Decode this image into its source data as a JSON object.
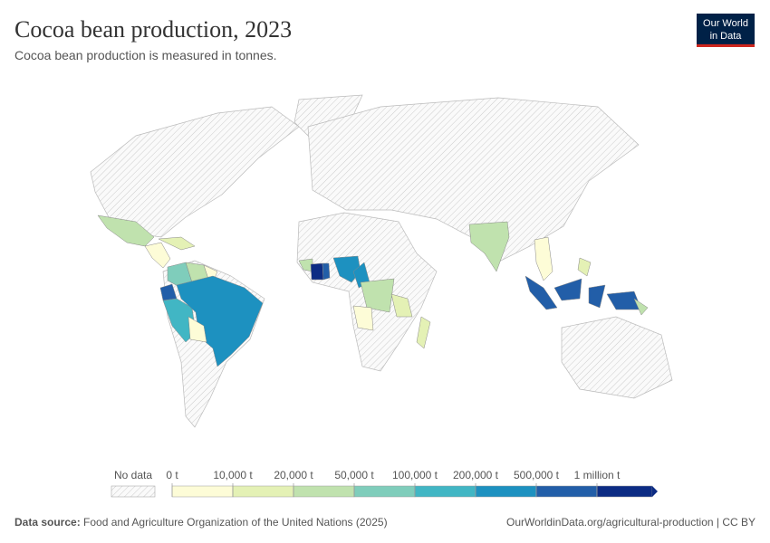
{
  "chart_data": {
    "type": "map",
    "title": "Cocoa bean production, 2023",
    "subtitle": "Cocoa bean production is measured in tonnes.",
    "logo": [
      "Our World",
      "in Data"
    ],
    "legend": {
      "no_data_label": "No data",
      "ticks": [
        {
          "value": 0,
          "label": "0 t"
        },
        {
          "value": 10000,
          "label": "10,000 t"
        },
        {
          "value": 20000,
          "label": "20,000 t"
        },
        {
          "value": 50000,
          "label": "50,000 t"
        },
        {
          "value": 100000,
          "label": "100,000 t"
        },
        {
          "value": 200000,
          "label": "200,000 t"
        },
        {
          "value": 500000,
          "label": "500,000 t"
        },
        {
          "value": 1000000,
          "label": "1 million t"
        }
      ],
      "colors": [
        "#fdfcd7",
        "#e4f1b5",
        "#c0e2ae",
        "#7fcdbb",
        "#41b6c4",
        "#1d91c0",
        "#225ea8",
        "#0c2c84"
      ]
    },
    "source_label": "Data source:",
    "source": "Food and Agriculture Organization of the United Nations (2025)",
    "url": "OurWorldinData.org/agricultural-production | CC BY"
  }
}
